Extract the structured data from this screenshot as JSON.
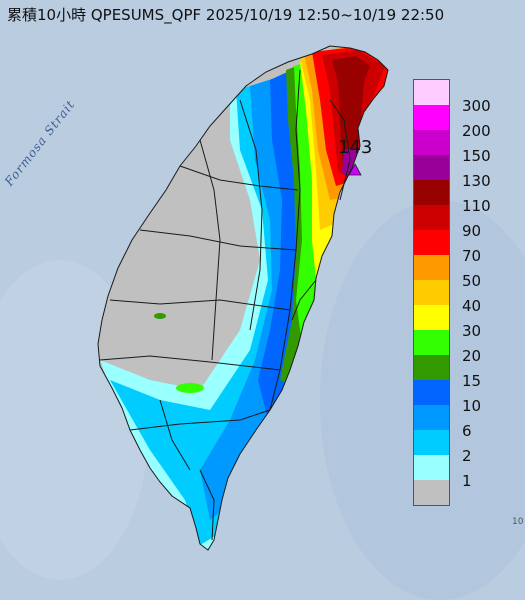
{
  "title": "累積10小時 QPESUMS_QPF 2025/10/19 12:50~10/19 22:50",
  "strait_label": "Formosa Strait",
  "max_value_label": "143",
  "edge_mark": "10",
  "legend": {
    "levels": [
      {
        "label": "300",
        "color": "#ffccff"
      },
      {
        "label": "200",
        "color": "#ff00ff"
      },
      {
        "label": "150",
        "color": "#cc00cc"
      },
      {
        "label": "130",
        "color": "#990099"
      },
      {
        "label": "110",
        "color": "#990000"
      },
      {
        "label": "90",
        "color": "#cc0000"
      },
      {
        "label": "70",
        "color": "#ff0000"
      },
      {
        "label": "50",
        "color": "#ff9900"
      },
      {
        "label": "40",
        "color": "#ffcc00"
      },
      {
        "label": "30",
        "color": "#ffff00"
      },
      {
        "label": "20",
        "color": "#33ff00"
      },
      {
        "label": "15",
        "color": "#339900"
      },
      {
        "label": "10",
        "color": "#0066ff"
      },
      {
        "label": "6",
        "color": "#0099ff"
      },
      {
        "label": "2",
        "color": "#00ccff"
      },
      {
        "label": "1",
        "color": "#99ffff"
      },
      {
        "label": "",
        "color": "#c0c0c0"
      }
    ]
  },
  "colors": {
    "sea": "#b9cce0",
    "no_rain_land": "#c0c0c0",
    "boundary_lines": "#1a1a1a",
    "max_marker": "#d000ff"
  }
}
